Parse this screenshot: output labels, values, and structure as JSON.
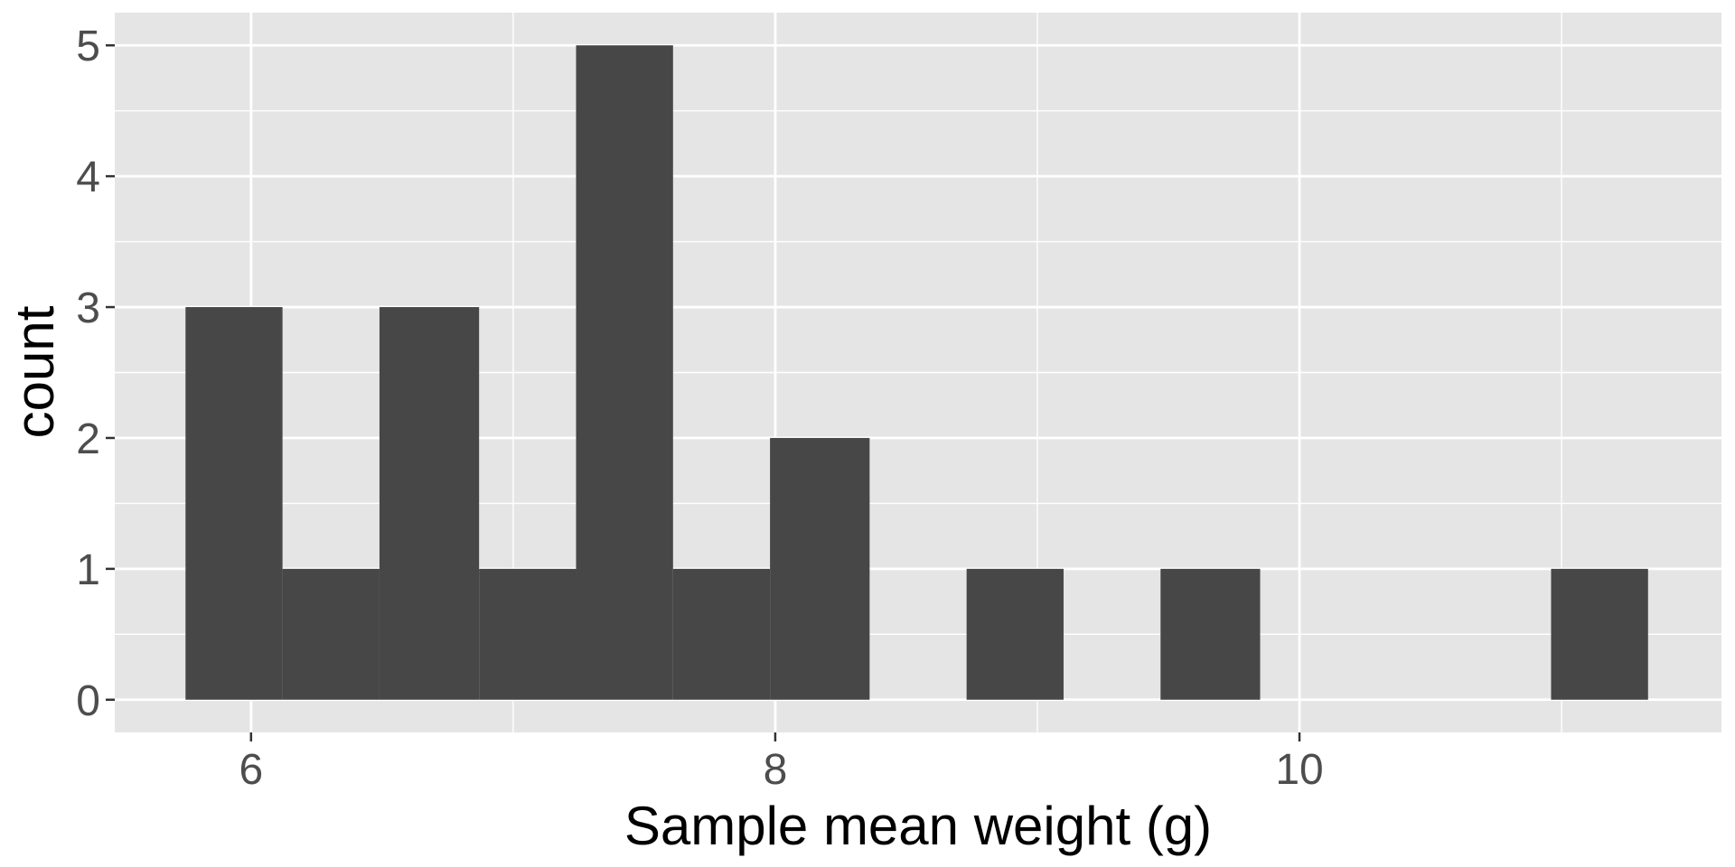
{
  "chart_data": {
    "type": "bar",
    "xlabel": "Sample mean weight (g)",
    "ylabel": "count",
    "bin_width": 0.372,
    "bins": [
      {
        "x0": 5.75,
        "x1": 6.12,
        "count": 3
      },
      {
        "x0": 6.12,
        "x1": 6.49,
        "count": 1
      },
      {
        "x0": 6.49,
        "x1": 6.87,
        "count": 3
      },
      {
        "x0": 6.87,
        "x1": 7.24,
        "count": 1
      },
      {
        "x0": 7.24,
        "x1": 7.61,
        "count": 5
      },
      {
        "x0": 7.61,
        "x1": 7.98,
        "count": 1
      },
      {
        "x0": 7.98,
        "x1": 8.36,
        "count": 2
      },
      {
        "x0": 8.73,
        "x1": 9.1,
        "count": 1
      },
      {
        "x0": 9.47,
        "x1": 9.85,
        "count": 1
      },
      {
        "x0": 10.96,
        "x1": 11.33,
        "count": 1
      }
    ],
    "xlim": [
      5.48,
      11.61
    ],
    "ylim": [
      -0.25,
      5.25
    ],
    "x_ticks": [
      6,
      8,
      10
    ],
    "x_minor_ticks": [
      7,
      9,
      11
    ],
    "y_ticks": [
      0,
      1,
      2,
      3,
      4,
      5
    ],
    "y_minor_ticks": [
      0.5,
      1.5,
      2.5,
      3.5,
      4.5
    ],
    "grid": true,
    "legend": "none",
    "colors": {
      "panel": "#e5e5e5",
      "grid": "#ffffff",
      "bar": "#474747",
      "tick_text": "#4d4d4d",
      "tick_mark": "#333333",
      "title_text": "#000000"
    }
  }
}
